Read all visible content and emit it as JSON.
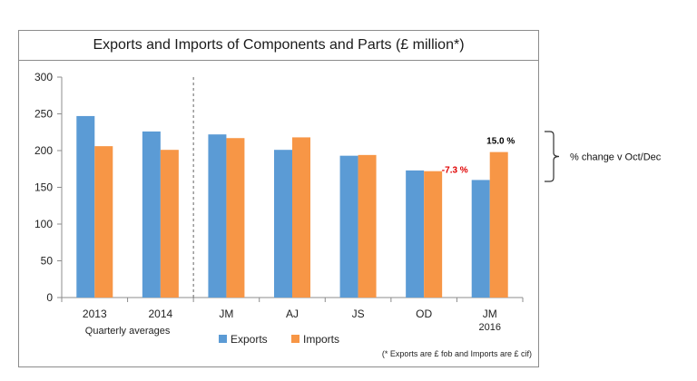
{
  "chart_data": {
    "type": "bar",
    "title": "Exports and Imports of Components and Parts (£ million*)",
    "categories": [
      "2013",
      "2014",
      "JM",
      "AJ",
      "JS",
      "OD",
      "JM"
    ],
    "category_sublabels": [
      "",
      "",
      "",
      "",
      "",
      "",
      "2016"
    ],
    "group_label": "Quarterly averages",
    "series": [
      {
        "name": "Exports",
        "color": "#5b9bd5",
        "values": [
          247,
          226,
          222,
          201,
          193,
          173,
          160
        ]
      },
      {
        "name": "Imports",
        "color": "#f79646",
        "values": [
          206,
          201,
          217,
          218,
          194,
          172,
          198
        ]
      }
    ],
    "ylim": [
      0,
      300
    ],
    "yticks": [
      "0",
      "50",
      "100",
      "150",
      "200",
      "250",
      "300"
    ],
    "divider_after_index": 1,
    "annotations": [
      {
        "text": "15.0 %",
        "color": "#000000",
        "series": "Imports",
        "index": 6
      },
      {
        "text": "-7.3 %",
        "color": "#e00000",
        "series": "Exports",
        "index": 6
      }
    ],
    "side_note": "% change v Oct/Dec",
    "footnote": "(* Exports are £ fob and Imports are £ cif)",
    "grid": false,
    "legend": "bottom"
  }
}
